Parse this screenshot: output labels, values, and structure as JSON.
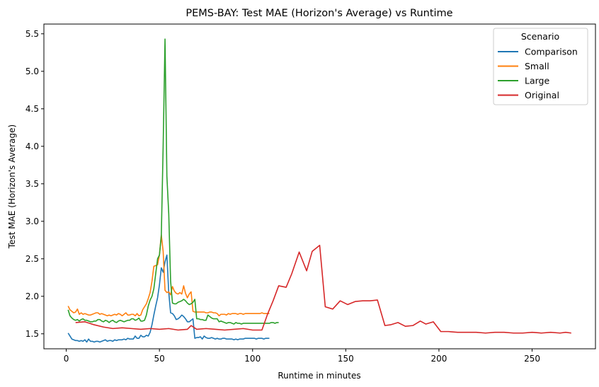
{
  "chart_data": {
    "type": "line",
    "title": "PEMS-BAY: Test MAE (Horizon's Average) vs Runtime",
    "xlabel": "Runtime in minutes",
    "ylabel": "Test MAE (Horizon's Average)",
    "xlim": [
      -12,
      284
    ],
    "ylim": [
      1.3,
      5.63
    ],
    "xticks": [
      0,
      50,
      100,
      150,
      200,
      250
    ],
    "yticks": [
      1.5,
      2.0,
      2.5,
      3.0,
      3.5,
      4.0,
      4.5,
      5.0,
      5.5
    ],
    "xtick_labels": [
      "0",
      "50",
      "100",
      "150",
      "200",
      "250"
    ],
    "ytick_labels": [
      "1.5",
      "2.0",
      "2.5",
      "3.0",
      "3.5",
      "4.0",
      "4.5",
      "5.0",
      "5.5"
    ],
    "grid": false,
    "legend": {
      "title": "Scenario",
      "placement": "top-right"
    },
    "series": [
      {
        "name": "Comparison",
        "color": "#1f77b4",
        "x": [
          1,
          2,
          3,
          4,
          5,
          6,
          7,
          8,
          9,
          10,
          11,
          12,
          13,
          14,
          15,
          16,
          17,
          18,
          19,
          20,
          21,
          22,
          23,
          24,
          25,
          26,
          27,
          28,
          29,
          30,
          31,
          32,
          33,
          34,
          35,
          36,
          37,
          38,
          39,
          40,
          41,
          42,
          43,
          44,
          45,
          46,
          47,
          48,
          49,
          50,
          51,
          52,
          53,
          54,
          55,
          56,
          57,
          58,
          59,
          60,
          61,
          62,
          63,
          64,
          65,
          66,
          67,
          68,
          69,
          70,
          71,
          72,
          73,
          74,
          75,
          76,
          77,
          78,
          79,
          80,
          81,
          82,
          83,
          84,
          85,
          86,
          87,
          88,
          89,
          90,
          91,
          92,
          93,
          94,
          95,
          96,
          97,
          98,
          99,
          100,
          101,
          102,
          103,
          104,
          105,
          106,
          107,
          108,
          109
        ],
        "y": [
          1.51,
          1.47,
          1.43,
          1.42,
          1.41,
          1.41,
          1.4,
          1.41,
          1.4,
          1.42,
          1.39,
          1.43,
          1.4,
          1.4,
          1.39,
          1.4,
          1.4,
          1.39,
          1.4,
          1.41,
          1.42,
          1.4,
          1.41,
          1.41,
          1.4,
          1.42,
          1.41,
          1.42,
          1.42,
          1.42,
          1.43,
          1.42,
          1.44,
          1.43,
          1.43,
          1.43,
          1.47,
          1.44,
          1.44,
          1.48,
          1.46,
          1.46,
          1.48,
          1.47,
          1.52,
          1.62,
          1.75,
          1.87,
          1.98,
          2.15,
          2.38,
          2.32,
          2.46,
          2.55,
          2.05,
          1.78,
          1.77,
          1.74,
          1.69,
          1.7,
          1.72,
          1.75,
          1.73,
          1.7,
          1.66,
          1.66,
          1.68,
          1.7,
          1.44,
          1.45,
          1.45,
          1.46,
          1.43,
          1.47,
          1.45,
          1.44,
          1.44,
          1.45,
          1.44,
          1.43,
          1.44,
          1.43,
          1.43,
          1.44,
          1.44,
          1.43,
          1.43,
          1.43,
          1.43,
          1.42,
          1.43,
          1.42,
          1.43,
          1.43,
          1.43,
          1.44,
          1.44,
          1.44,
          1.44,
          1.44,
          1.44,
          1.43,
          1.44,
          1.44,
          1.44,
          1.43,
          1.44,
          1.44,
          1.44
        ]
      },
      {
        "name": "Small",
        "color": "#ff7f0e",
        "x": [
          1,
          2,
          3,
          4,
          5,
          6,
          7,
          8,
          9,
          10,
          11,
          12,
          13,
          14,
          15,
          16,
          17,
          18,
          19,
          20,
          21,
          22,
          23,
          24,
          25,
          26,
          27,
          28,
          29,
          30,
          31,
          32,
          33,
          34,
          35,
          36,
          37,
          38,
          39,
          40,
          41,
          42,
          43,
          44,
          45,
          46,
          47,
          48,
          49,
          50,
          51,
          52,
          53,
          54,
          55,
          56,
          57,
          58,
          59,
          60,
          61,
          62,
          63,
          64,
          65,
          66,
          67,
          68,
          69,
          70,
          71,
          72,
          73,
          74,
          75,
          76,
          77,
          78,
          79,
          80,
          81,
          82,
          83,
          84,
          85,
          86,
          87,
          88,
          89,
          90,
          91,
          92,
          93,
          94,
          95,
          96,
          97,
          98,
          99,
          100,
          101,
          102,
          103,
          104,
          105,
          106,
          107,
          108,
          109
        ],
        "y": [
          1.87,
          1.82,
          1.8,
          1.78,
          1.79,
          1.83,
          1.76,
          1.78,
          1.76,
          1.77,
          1.76,
          1.75,
          1.75,
          1.76,
          1.77,
          1.78,
          1.78,
          1.76,
          1.77,
          1.76,
          1.75,
          1.74,
          1.75,
          1.74,
          1.75,
          1.76,
          1.75,
          1.77,
          1.76,
          1.74,
          1.76,
          1.78,
          1.75,
          1.75,
          1.76,
          1.76,
          1.74,
          1.77,
          1.74,
          1.75,
          1.82,
          1.86,
          1.9,
          1.97,
          2.05,
          2.2,
          2.4,
          2.41,
          2.42,
          2.55,
          2.82,
          2.6,
          2.08,
          2.05,
          2.06,
          2.02,
          2.13,
          2.07,
          2.04,
          2.03,
          2.05,
          2.03,
          2.14,
          2.04,
          1.98,
          2.03,
          2.06,
          1.8,
          1.79,
          1.79,
          1.79,
          1.79,
          1.79,
          1.79,
          1.78,
          1.78,
          1.79,
          1.79,
          1.78,
          1.78,
          1.77,
          1.74,
          1.76,
          1.76,
          1.76,
          1.75,
          1.77,
          1.76,
          1.77,
          1.77,
          1.77,
          1.76,
          1.77,
          1.77,
          1.76,
          1.77,
          1.77,
          1.77,
          1.77,
          1.77,
          1.77,
          1.77,
          1.77,
          1.77,
          1.78,
          1.77,
          1.77,
          1.77,
          1.77
        ]
      },
      {
        "name": "Large",
        "color": "#2ca02c",
        "x": [
          1,
          2,
          3,
          4,
          5,
          6,
          7,
          8,
          9,
          10,
          11,
          12,
          13,
          14,
          15,
          16,
          17,
          18,
          19,
          20,
          21,
          22,
          23,
          24,
          25,
          26,
          27,
          28,
          29,
          30,
          31,
          32,
          33,
          34,
          35,
          36,
          37,
          38,
          39,
          40,
          41,
          42,
          43,
          44,
          45,
          46,
          47,
          48,
          49,
          50,
          51,
          52,
          53,
          54,
          55,
          56,
          57,
          58,
          59,
          60,
          61,
          62,
          63,
          64,
          65,
          66,
          67,
          68,
          69,
          70,
          71,
          72,
          73,
          74,
          75,
          76,
          77,
          78,
          79,
          80,
          81,
          82,
          83,
          84,
          85,
          86,
          87,
          88,
          89,
          90,
          91,
          92,
          93,
          94,
          95,
          96,
          97,
          98,
          99,
          100,
          101,
          102,
          103,
          104,
          105,
          106,
          107,
          108,
          109,
          110,
          111,
          112,
          113,
          114
        ],
        "y": [
          1.82,
          1.74,
          1.71,
          1.69,
          1.68,
          1.69,
          1.67,
          1.69,
          1.7,
          1.68,
          1.68,
          1.67,
          1.66,
          1.66,
          1.67,
          1.67,
          1.69,
          1.69,
          1.67,
          1.66,
          1.68,
          1.67,
          1.65,
          1.67,
          1.68,
          1.66,
          1.65,
          1.67,
          1.68,
          1.67,
          1.66,
          1.67,
          1.68,
          1.68,
          1.7,
          1.7,
          1.68,
          1.69,
          1.71,
          1.67,
          1.67,
          1.68,
          1.75,
          1.87,
          1.95,
          2.0,
          2.1,
          2.3,
          2.5,
          2.55,
          2.8,
          4.0,
          5.43,
          3.6,
          3.1,
          2.2,
          1.91,
          1.9,
          1.9,
          1.92,
          1.93,
          1.94,
          1.96,
          1.94,
          1.91,
          1.89,
          1.9,
          1.92,
          1.96,
          1.7,
          1.7,
          1.69,
          1.69,
          1.68,
          1.68,
          1.75,
          1.73,
          1.71,
          1.7,
          1.7,
          1.7,
          1.66,
          1.67,
          1.66,
          1.65,
          1.64,
          1.65,
          1.65,
          1.64,
          1.63,
          1.65,
          1.64,
          1.64,
          1.63,
          1.64,
          1.64,
          1.64,
          1.64,
          1.64,
          1.64,
          1.64,
          1.64,
          1.64,
          1.64,
          1.64,
          1.64,
          1.64,
          1.64,
          1.64,
          1.65,
          1.65,
          1.64,
          1.65,
          1.65
        ]
      },
      {
        "name": "Original",
        "color": "#d62728",
        "x": [
          5,
          10,
          15,
          20,
          25,
          30,
          35,
          40,
          45,
          50,
          55,
          60,
          65,
          67,
          70,
          75,
          80,
          85,
          90,
          95,
          100,
          105,
          108,
          111,
          114,
          118,
          121,
          125,
          129,
          132,
          136,
          139,
          143,
          147,
          151,
          155,
          159,
          163,
          167,
          171,
          174,
          178,
          182,
          186,
          190,
          193,
          197,
          201,
          205,
          210,
          215,
          220,
          225,
          230,
          235,
          240,
          245,
          250,
          255,
          260,
          265,
          268,
          271
        ],
        "y": [
          1.65,
          1.66,
          1.62,
          1.59,
          1.57,
          1.58,
          1.57,
          1.56,
          1.57,
          1.56,
          1.57,
          1.55,
          1.56,
          1.61,
          1.56,
          1.57,
          1.56,
          1.55,
          1.56,
          1.57,
          1.55,
          1.55,
          1.76,
          1.94,
          2.14,
          2.12,
          2.3,
          2.59,
          2.34,
          2.6,
          2.68,
          1.86,
          1.83,
          1.94,
          1.89,
          1.93,
          1.94,
          1.94,
          1.95,
          1.61,
          1.62,
          1.65,
          1.6,
          1.61,
          1.67,
          1.63,
          1.66,
          1.53,
          1.53,
          1.52,
          1.52,
          1.52,
          1.51,
          1.52,
          1.52,
          1.51,
          1.51,
          1.52,
          1.51,
          1.52,
          1.51,
          1.52,
          1.51
        ]
      }
    ]
  }
}
